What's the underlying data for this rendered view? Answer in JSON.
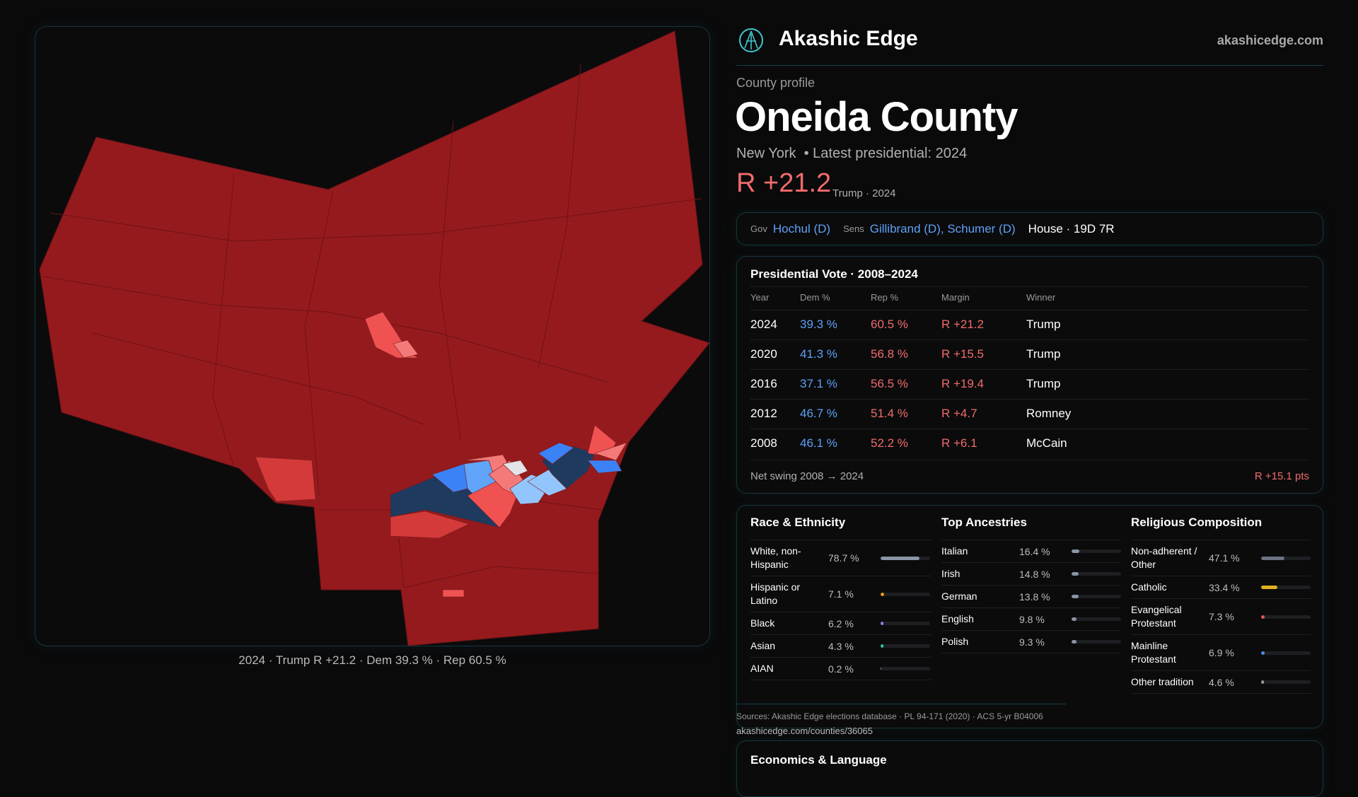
{
  "brand": {
    "name": "Akashic Edge",
    "site": "akashicedge.com",
    "logo_icon": "akashic-edge-logo"
  },
  "header": {
    "eyebrow": "County profile",
    "county": "Oneida County",
    "subtitle": "New York  • Latest presidential: 2024",
    "margin": "R +21.2",
    "margin_note": "Trump · 2024"
  },
  "officials": {
    "gov_label": "Gov",
    "gov": "Hochul (D)",
    "sens_label": "Sens",
    "sens": "Gillibrand (D), Schumer (D)",
    "house": "House · 19D 7R"
  },
  "map": {
    "caption": "2024 · Trump R +21.2 · Dem 39.3 % · Rep 60.5 %",
    "colors": {
      "safe_r": "#951a1e",
      "lean_r": "#d43a3a",
      "tilt_r": "#f47a7a",
      "tossup": "#e2e4e8",
      "tilt_d": "#93c5fd",
      "lean_d": "#3b82f6",
      "safe_d": "#1e3a5f"
    }
  },
  "presidential": {
    "title": "Presidential Vote · 2008–2024",
    "headers": [
      "Year",
      "Dem %",
      "Rep %",
      "Margin",
      "Winner"
    ],
    "rows": [
      [
        "2024",
        "39.3 %",
        "60.5 %",
        "R +21.2",
        "Trump"
      ],
      [
        "2020",
        "41.3 %",
        "56.8 %",
        "R +15.5",
        "Trump"
      ],
      [
        "2016",
        "37.1 %",
        "56.5 %",
        "R +19.4",
        "Trump"
      ],
      [
        "2012",
        "46.7 %",
        "51.4 %",
        "R +4.7",
        "Romney"
      ],
      [
        "2008",
        "46.1 %",
        "52.2 %",
        "R +6.1",
        "McCain"
      ]
    ],
    "swing_label": "Net swing 2008 → 2024",
    "swing_value": "R +15.1 pts"
  },
  "race": {
    "title": "Race & Ethnicity",
    "items": [
      {
        "name": "White, non-Hispanic",
        "pct": "78.7 %",
        "value": 78.7,
        "color": "#8a94a6"
      },
      {
        "name": "Hispanic or Latino",
        "pct": "7.1 %",
        "value": 7.1,
        "color": "#e89a1c"
      },
      {
        "name": "Black",
        "pct": "6.2 %",
        "value": 6.2,
        "color": "#9b7fe0"
      },
      {
        "name": "Asian",
        "pct": "4.3 %",
        "value": 4.3,
        "color": "#34c49a"
      },
      {
        "name": "AIAN",
        "pct": "0.2 %",
        "value": 0.2,
        "color": "#8a94a6"
      }
    ]
  },
  "ancestry": {
    "title": "Top Ancestries",
    "items": [
      {
        "name": "Italian",
        "pct": "16.4 %",
        "value": 16.4,
        "color": "#8a94a6"
      },
      {
        "name": "Irish",
        "pct": "14.8 %",
        "value": 14.8,
        "color": "#8a94a6"
      },
      {
        "name": "German",
        "pct": "13.8 %",
        "value": 13.8,
        "color": "#8a94a6"
      },
      {
        "name": "English",
        "pct": "9.8 %",
        "value": 9.8,
        "color": "#8a94a6"
      },
      {
        "name": "Polish",
        "pct": "9.3 %",
        "value": 9.3,
        "color": "#8a94a6"
      }
    ]
  },
  "religion": {
    "title": "Religious Composition",
    "items": [
      {
        "name": "Non-adherent / Other",
        "pct": "47.1 %",
        "value": 47.1,
        "color": "#6b7280"
      },
      {
        "name": "Catholic",
        "pct": "33.4 %",
        "value": 33.4,
        "color": "#e0b020"
      },
      {
        "name": "Evangelical Protestant",
        "pct": "7.3 %",
        "value": 7.3,
        "color": "#e05a5a"
      },
      {
        "name": "Mainline Protestant",
        "pct": "6.9 %",
        "value": 6.9,
        "color": "#4a8fe8"
      },
      {
        "name": "Other tradition",
        "pct": "4.6 %",
        "value": 4.6,
        "color": "#9a9a9a"
      }
    ]
  },
  "footer": {
    "sources": "Sources: Akashic Edge elections database · PL 94-171 (2020) · ACS 5-yr B04006",
    "url": "akashicedge.com/counties/36065"
  },
  "economics": {
    "title": "Economics & Language"
  }
}
